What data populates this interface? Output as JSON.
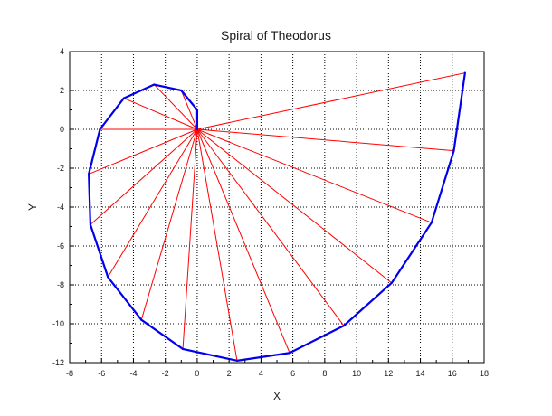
{
  "chart_data": {
    "type": "line",
    "title": "Spiral of Theodorus",
    "xlabel": "X",
    "ylabel": "Y",
    "xlim": [
      -8,
      18
    ],
    "ylim": [
      -12,
      4
    ],
    "x_ticks": [
      "-8",
      "-6",
      "-4",
      "-2",
      "0",
      "2",
      "4",
      "6",
      "8",
      "10",
      "12",
      "14",
      "16",
      "18"
    ],
    "y_ticks": [
      "-12",
      "-10",
      "-8",
      "-6",
      "-4",
      "-2",
      "0",
      "2",
      "4"
    ],
    "grid": true,
    "legend": "none",
    "colors": {
      "spiral": "#0000ee",
      "spokes": "#ff0000",
      "grid": "#000000",
      "axes": "#000000"
    },
    "series": [
      {
        "role": "spiral",
        "x": [
          0,
          0,
          -1,
          -2.7,
          -4.6,
          -6.1,
          -6.8,
          -6.7,
          -5.6,
          -3.5,
          -0.9,
          2.5,
          5.8,
          9.2,
          12.2,
          14.7,
          16.1,
          16.8
        ],
        "y": [
          0,
          1,
          2.0,
          2.3,
          1.6,
          0,
          -2.3,
          -4.9,
          -7.6,
          -9.8,
          -11.3,
          -11.9,
          -11.5,
          -10.1,
          -7.9,
          -4.8,
          -1.1,
          2.9
        ]
      },
      {
        "role": "spokes",
        "origin": [
          0,
          0
        ],
        "x": [
          0,
          -1,
          -2.7,
          -4.6,
          -6.1,
          -6.8,
          -6.7,
          -5.6,
          -3.5,
          -0.9,
          2.5,
          5.8,
          9.2,
          12.2,
          14.7,
          16.1,
          16.8
        ],
        "y": [
          1,
          2.0,
          2.3,
          1.6,
          0,
          -2.3,
          -4.9,
          -7.6,
          -9.8,
          -11.3,
          -11.9,
          -11.5,
          -10.1,
          -7.9,
          -4.8,
          -1.1,
          2.9
        ]
      }
    ]
  }
}
